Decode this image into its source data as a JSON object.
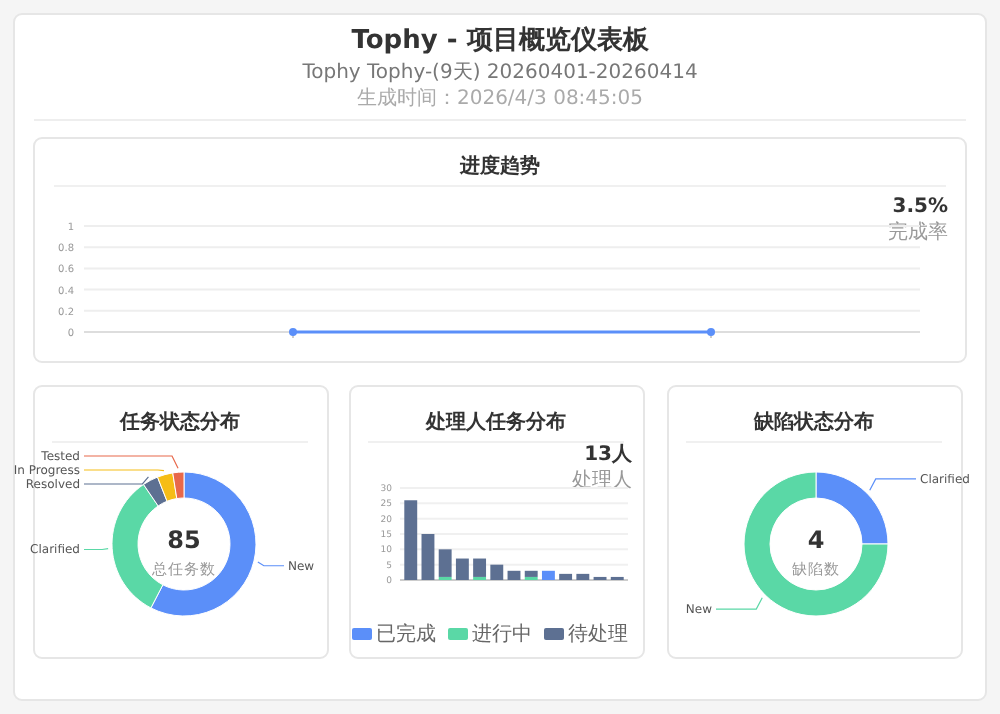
{
  "chart_data": [
    {
      "type": "other",
      "title": "Tophy - 项目概览仪表板",
      "subtitle": "Tophy Tophy-(9天) 20260401-20260414",
      "annotations": [
        "生成时间：2026/4/3 08:45:05"
      ]
    },
    {
      "type": "line",
      "title": "进度趋势",
      "categories": [
        null,
        null
      ],
      "series": [
        {
          "color": "#5b8ff9",
          "values": [
            0,
            0
          ]
        }
      ],
      "ylim": [
        0,
        1
      ],
      "yticks": [
        0,
        0.2,
        0.4,
        0.6,
        0.8,
        1
      ],
      "grid": "y",
      "marker": "circle",
      "annotations": [
        "3.5%",
        "完成率"
      ]
    },
    {
      "type": "donut",
      "title": "任务状态分布",
      "categories": [
        "New",
        "Clarified",
        "Resolved",
        "In Progress",
        "Tested"
      ],
      "values": [
        57.6,
        32.9,
        3.5,
        3.5,
        2.5
      ],
      "colors": [
        "#5b8ff9",
        "#5ad8a6",
        "#5d7092",
        "#f6bd16",
        "#e8684a"
      ],
      "annotations": [
        "85",
        "总任务数"
      ]
    },
    {
      "type": "bar",
      "title": "处理人任务分布",
      "stacked": true,
      "categories": [
        null,
        null,
        null,
        null,
        null,
        null,
        null,
        null,
        null,
        null,
        null,
        null,
        null
      ],
      "series": [
        {
          "name": "已完成",
          "color": "#5b8ff9",
          "values": [
            0,
            0,
            0,
            0,
            0,
            0,
            0,
            0,
            3,
            0,
            0,
            0,
            0
          ]
        },
        {
          "name": "进行中",
          "color": "#5ad8a6",
          "values": [
            0,
            0,
            1,
            0,
            1,
            0,
            0,
            1,
            0,
            0,
            0,
            0,
            0
          ]
        },
        {
          "name": "待处理",
          "color": "#5d7092",
          "values": [
            26,
            15,
            9,
            7,
            6,
            5,
            3,
            2,
            0,
            2,
            2,
            1,
            1
          ]
        }
      ],
      "ylim": [
        0,
        30
      ],
      "yticks": [
        0,
        5,
        10,
        15,
        20,
        25,
        30
      ],
      "grid": "y",
      "legend": "bottom",
      "annotations": [
        "13人",
        "处理人"
      ]
    },
    {
      "type": "donut",
      "title": "缺陷状态分布",
      "categories": [
        "Clarified",
        "New"
      ],
      "values": [
        25,
        75
      ],
      "colors": [
        "#5b8ff9",
        "#5ad8a6"
      ],
      "annotations": [
        "4",
        "缺陷数"
      ]
    }
  ]
}
